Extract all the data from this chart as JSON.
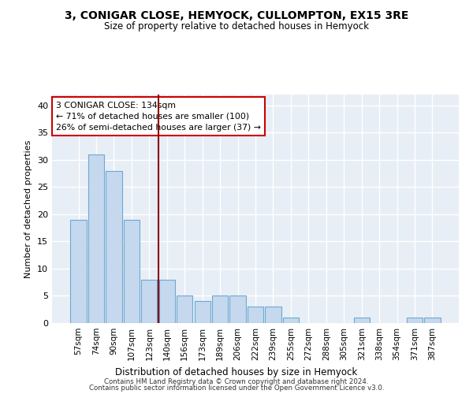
{
  "title": "3, CONIGAR CLOSE, HEMYOCK, CULLOMPTON, EX15 3RE",
  "subtitle": "Size of property relative to detached houses in Hemyock",
  "xlabel": "Distribution of detached houses by size in Hemyock",
  "ylabel": "Number of detached properties",
  "categories": [
    "57sqm",
    "74sqm",
    "90sqm",
    "107sqm",
    "123sqm",
    "140sqm",
    "156sqm",
    "173sqm",
    "189sqm",
    "206sqm",
    "222sqm",
    "239sqm",
    "255sqm",
    "272sqm",
    "288sqm",
    "305sqm",
    "321sqm",
    "338sqm",
    "354sqm",
    "371sqm",
    "387sqm"
  ],
  "values": [
    19,
    31,
    28,
    19,
    8,
    8,
    5,
    4,
    5,
    5,
    3,
    3,
    1,
    0,
    0,
    0,
    1,
    0,
    0,
    1,
    1
  ],
  "bar_color": "#c5d8ed",
  "bar_edge_color": "#6aaad4",
  "background_color": "#e8eef6",
  "grid_color": "#ffffff",
  "vline_x": 4.5,
  "vline_color": "#8b0000",
  "annotation_text": "3 CONIGAR CLOSE: 134sqm\n← 71% of detached houses are smaller (100)\n26% of semi-detached houses are larger (37) →",
  "annotation_box_color": "#cc0000",
  "ylim": [
    0,
    42
  ],
  "yticks": [
    0,
    5,
    10,
    15,
    20,
    25,
    30,
    35,
    40
  ],
  "footer1": "Contains HM Land Registry data © Crown copyright and database right 2024.",
  "footer2": "Contains public sector information licensed under the Open Government Licence v3.0."
}
